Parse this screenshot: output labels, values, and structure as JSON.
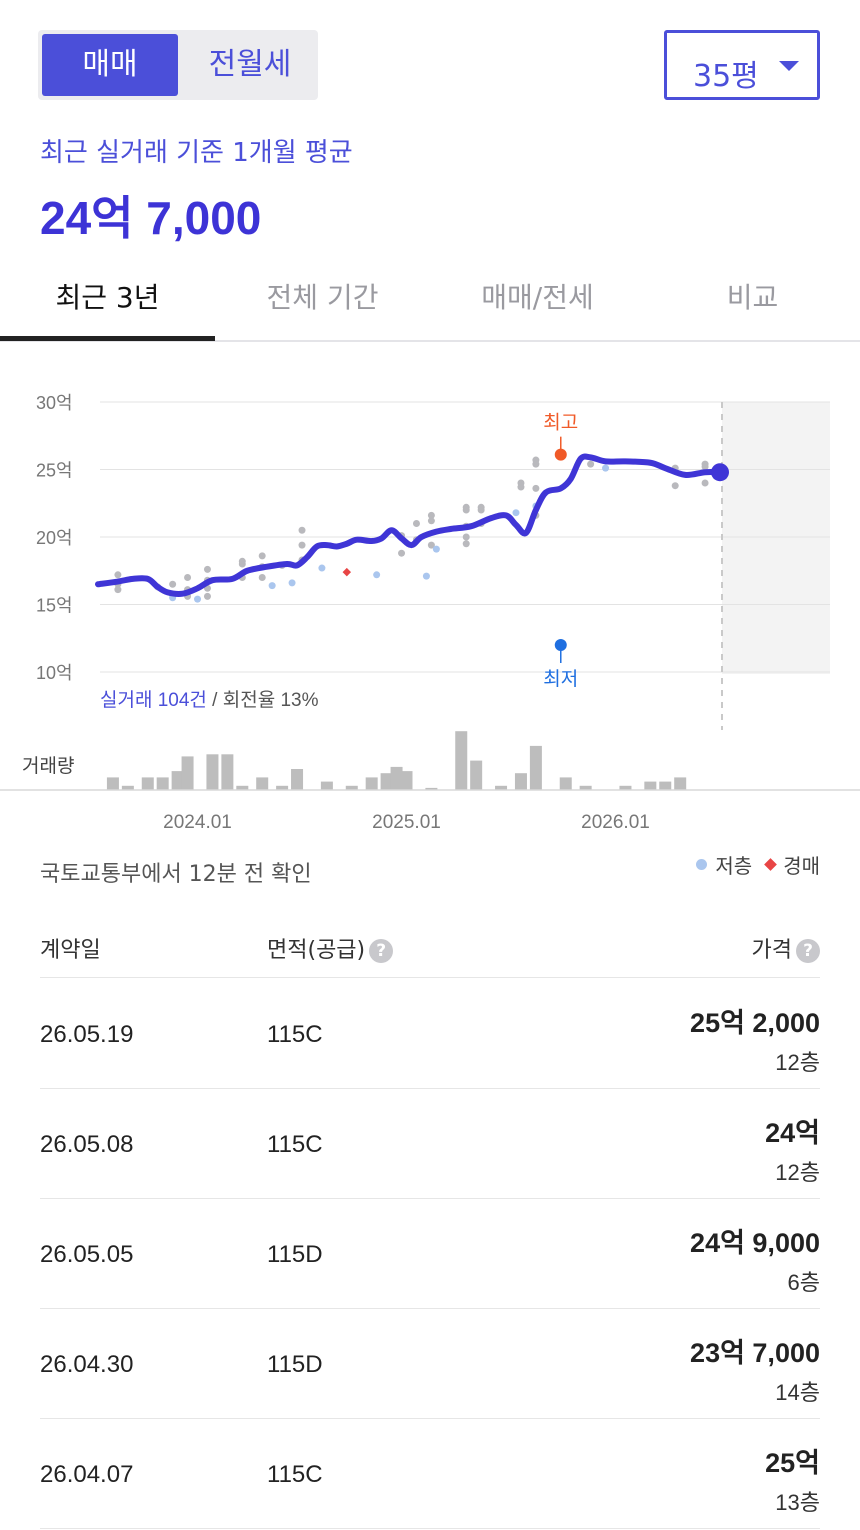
{
  "trade_toggle": {
    "selected": "매매",
    "other": "전월세"
  },
  "size_select": {
    "value": "35평"
  },
  "summary": {
    "subtitle": "최근 실거래 기준 1개월 평균",
    "price": "24억 7,000"
  },
  "tabs": [
    {
      "label": "최근 3년",
      "active": true
    },
    {
      "label": "전체 기간",
      "active": false
    },
    {
      "label": "매매/전세",
      "active": false
    },
    {
      "label": "비교",
      "active": false
    }
  ],
  "chart_data": {
    "type": "line",
    "y_unit": "억",
    "y_ticks": [
      "30억",
      "25억",
      "20억",
      "15억",
      "10억"
    ],
    "ylim": [
      10,
      30
    ],
    "x_ticks": [
      "2024.01",
      "2025.01",
      "2026.01"
    ],
    "series": [],
    "line_points": [
      [
        0,
        16.5
      ],
      [
        8,
        16.7
      ],
      [
        14,
        16.9
      ],
      [
        20,
        16.9
      ],
      [
        24,
        16.3
      ],
      [
        28,
        15.9
      ],
      [
        34,
        15.8
      ],
      [
        40,
        16.2
      ],
      [
        46,
        16.8
      ],
      [
        54,
        16.9
      ],
      [
        60,
        17.5
      ],
      [
        68,
        17.8
      ],
      [
        76,
        18.0
      ],
      [
        80,
        17.9
      ],
      [
        84,
        18.5
      ],
      [
        88,
        19.3
      ],
      [
        92,
        19.4
      ],
      [
        96,
        19.3
      ],
      [
        100,
        19.5
      ],
      [
        104,
        19.8
      ],
      [
        110,
        19.7
      ],
      [
        114,
        19.9
      ],
      [
        118,
        20.5
      ],
      [
        122,
        19.9
      ],
      [
        126,
        19.4
      ],
      [
        130,
        20.0
      ],
      [
        136,
        20.4
      ],
      [
        142,
        20.6
      ],
      [
        150,
        20.8
      ],
      [
        158,
        21.4
      ],
      [
        164,
        21.6
      ],
      [
        168,
        20.9
      ],
      [
        172,
        20.3
      ],
      [
        176,
        22.0
      ],
      [
        180,
        23.3
      ],
      [
        186,
        23.6
      ],
      [
        190,
        24.3
      ],
      [
        194,
        25.8
      ],
      [
        198,
        25.9
      ],
      [
        204,
        25.6
      ],
      [
        212,
        25.6
      ],
      [
        222,
        25.5
      ],
      [
        228,
        25.1
      ],
      [
        236,
        24.6
      ],
      [
        244,
        24.8
      ],
      [
        250,
        24.8
      ]
    ],
    "x_domain": [
      0,
      250
    ],
    "x_tick_positions": [
      40,
      124,
      208
    ],
    "scatter_gray": [
      [
        8,
        16.1
      ],
      [
        8,
        17.2
      ],
      [
        8,
        16.5
      ],
      [
        24,
        16.3
      ],
      [
        30,
        15.7
      ],
      [
        30,
        16.5
      ],
      [
        36,
        16.1
      ],
      [
        36,
        15.6
      ],
      [
        36,
        17.0
      ],
      [
        44,
        15.6
      ],
      [
        44,
        16.2
      ],
      [
        44,
        16.8
      ],
      [
        44,
        17.6
      ],
      [
        58,
        17.0
      ],
      [
        58,
        18.0
      ],
      [
        58,
        18.2
      ],
      [
        66,
        17.0
      ],
      [
        66,
        17.8
      ],
      [
        66,
        18.6
      ],
      [
        74,
        17.9
      ],
      [
        82,
        18.3
      ],
      [
        82,
        19.4
      ],
      [
        82,
        20.5
      ],
      [
        122,
        18.8
      ],
      [
        122,
        20.1
      ],
      [
        128,
        19.8
      ],
      [
        128,
        21.0
      ],
      [
        134,
        21.2
      ],
      [
        134,
        21.6
      ],
      [
        134,
        19.4
      ],
      [
        148,
        19.5
      ],
      [
        148,
        20.0
      ],
      [
        148,
        20.8
      ],
      [
        148,
        22.0
      ],
      [
        148,
        22.2
      ],
      [
        154,
        21.0
      ],
      [
        154,
        22.2
      ],
      [
        154,
        22.0
      ],
      [
        170,
        23.7
      ],
      [
        170,
        24.0
      ],
      [
        176,
        23.6
      ],
      [
        176,
        25.4
      ],
      [
        176,
        25.7
      ],
      [
        176,
        21.6
      ],
      [
        198,
        25.4
      ],
      [
        232,
        25.1
      ],
      [
        232,
        23.8
      ],
      [
        244,
        25.2
      ],
      [
        244,
        24.0
      ],
      [
        244,
        25.4
      ]
    ],
    "scatter_low": [
      [
        30,
        15.5
      ],
      [
        40,
        15.4
      ],
      [
        70,
        16.4
      ],
      [
        78,
        16.6
      ],
      [
        90,
        17.7
      ],
      [
        112,
        17.2
      ],
      [
        132,
        17.1
      ],
      [
        136,
        19.1
      ],
      [
        168,
        21.8
      ],
      [
        176,
        22.3
      ],
      [
        204,
        25.1
      ]
    ],
    "scatter_auction": [
      [
        100,
        17.4
      ]
    ],
    "max_marker": {
      "label": "최고",
      "x": 186,
      "y": 26.1
    },
    "min_marker": {
      "label": "최저",
      "x": 186,
      "y": 12.0
    },
    "current_point": {
      "x": 250,
      "y": 24.8
    },
    "volume_label": "거래량",
    "volume_bars": [
      [
        6,
        6
      ],
      [
        12,
        2
      ],
      [
        20,
        6
      ],
      [
        26,
        6
      ],
      [
        32,
        9
      ],
      [
        36,
        16
      ],
      [
        46,
        17
      ],
      [
        52,
        17
      ],
      [
        58,
        2
      ],
      [
        66,
        6
      ],
      [
        74,
        2
      ],
      [
        80,
        10
      ],
      [
        92,
        4
      ],
      [
        102,
        2
      ],
      [
        110,
        6
      ],
      [
        116,
        8
      ],
      [
        120,
        11
      ],
      [
        124,
        9
      ],
      [
        134,
        1
      ],
      [
        146,
        28
      ],
      [
        152,
        14
      ],
      [
        162,
        2
      ],
      [
        170,
        8
      ],
      [
        176,
        21
      ],
      [
        188,
        6
      ],
      [
        196,
        2
      ],
      [
        212,
        2
      ],
      [
        222,
        4
      ],
      [
        228,
        4
      ],
      [
        234,
        6
      ]
    ],
    "stats_text": {
      "prefix": "실거래 104건",
      "rest": " / 회전율 13%"
    }
  },
  "colors": {
    "accent": "#4b4fd9",
    "line": "#3f35d6",
    "max": "#f05a28",
    "min": "#1f6fe0",
    "low": "#aac6ee",
    "auction": "#e84545"
  },
  "source_text": "국토교통부에서 12분 전 확인",
  "legend": [
    {
      "label": "저층",
      "icon": "dot-low"
    },
    {
      "label": "경매",
      "icon": "diamond-auction"
    }
  ],
  "table": {
    "headers": {
      "date": "계약일",
      "area": "면적(공급)",
      "price": "가격"
    },
    "rows": [
      {
        "date": "26.05.19",
        "area": "115C",
        "price": "25억 2,000",
        "floor": "12층"
      },
      {
        "date": "26.05.08",
        "area": "115C",
        "price": "24억",
        "floor": "12층"
      },
      {
        "date": "26.05.05",
        "area": "115D",
        "price": "24억 9,000",
        "floor": "6층"
      },
      {
        "date": "26.04.30",
        "area": "115D",
        "price": "23억 7,000",
        "floor": "14층"
      },
      {
        "date": "26.04.07",
        "area": "115C",
        "price": "25억",
        "floor": "13층"
      }
    ]
  }
}
